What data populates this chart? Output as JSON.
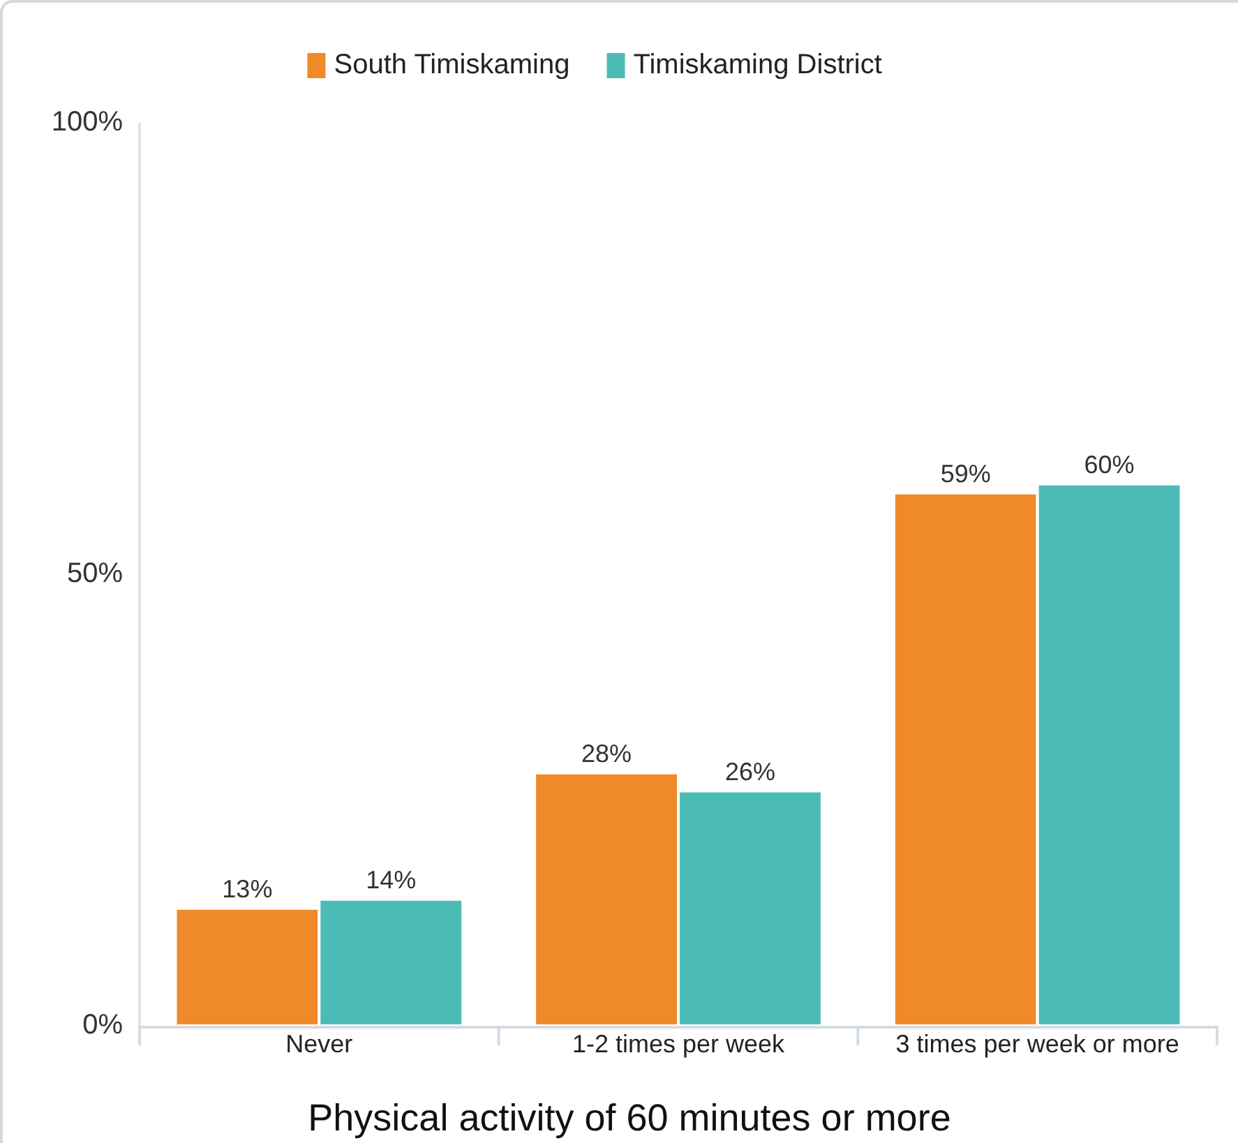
{
  "chart_data": {
    "type": "bar",
    "xlabel": "Physical activity of 60 minutes or more",
    "categories": [
      "Never",
      "1-2 times per week",
      "3 times per week or more"
    ],
    "series": [
      {
        "name": "South Timiskaming",
        "color": "#f0892a",
        "values": [
          13,
          28,
          59
        ],
        "value_labels": [
          "13%",
          "28%",
          "59%"
        ]
      },
      {
        "name": "Timiskaming District",
        "color": "#4bbcb5",
        "values": [
          14,
          26,
          60
        ],
        "value_labels": [
          "14%",
          "26%",
          "60%"
        ]
      }
    ],
    "ylim": [
      0,
      100
    ],
    "yticks": [
      {
        "value": 0,
        "label": "0%"
      },
      {
        "value": 50,
        "label": "50%"
      },
      {
        "value": 100,
        "label": "100%"
      }
    ],
    "legend": "top"
  }
}
